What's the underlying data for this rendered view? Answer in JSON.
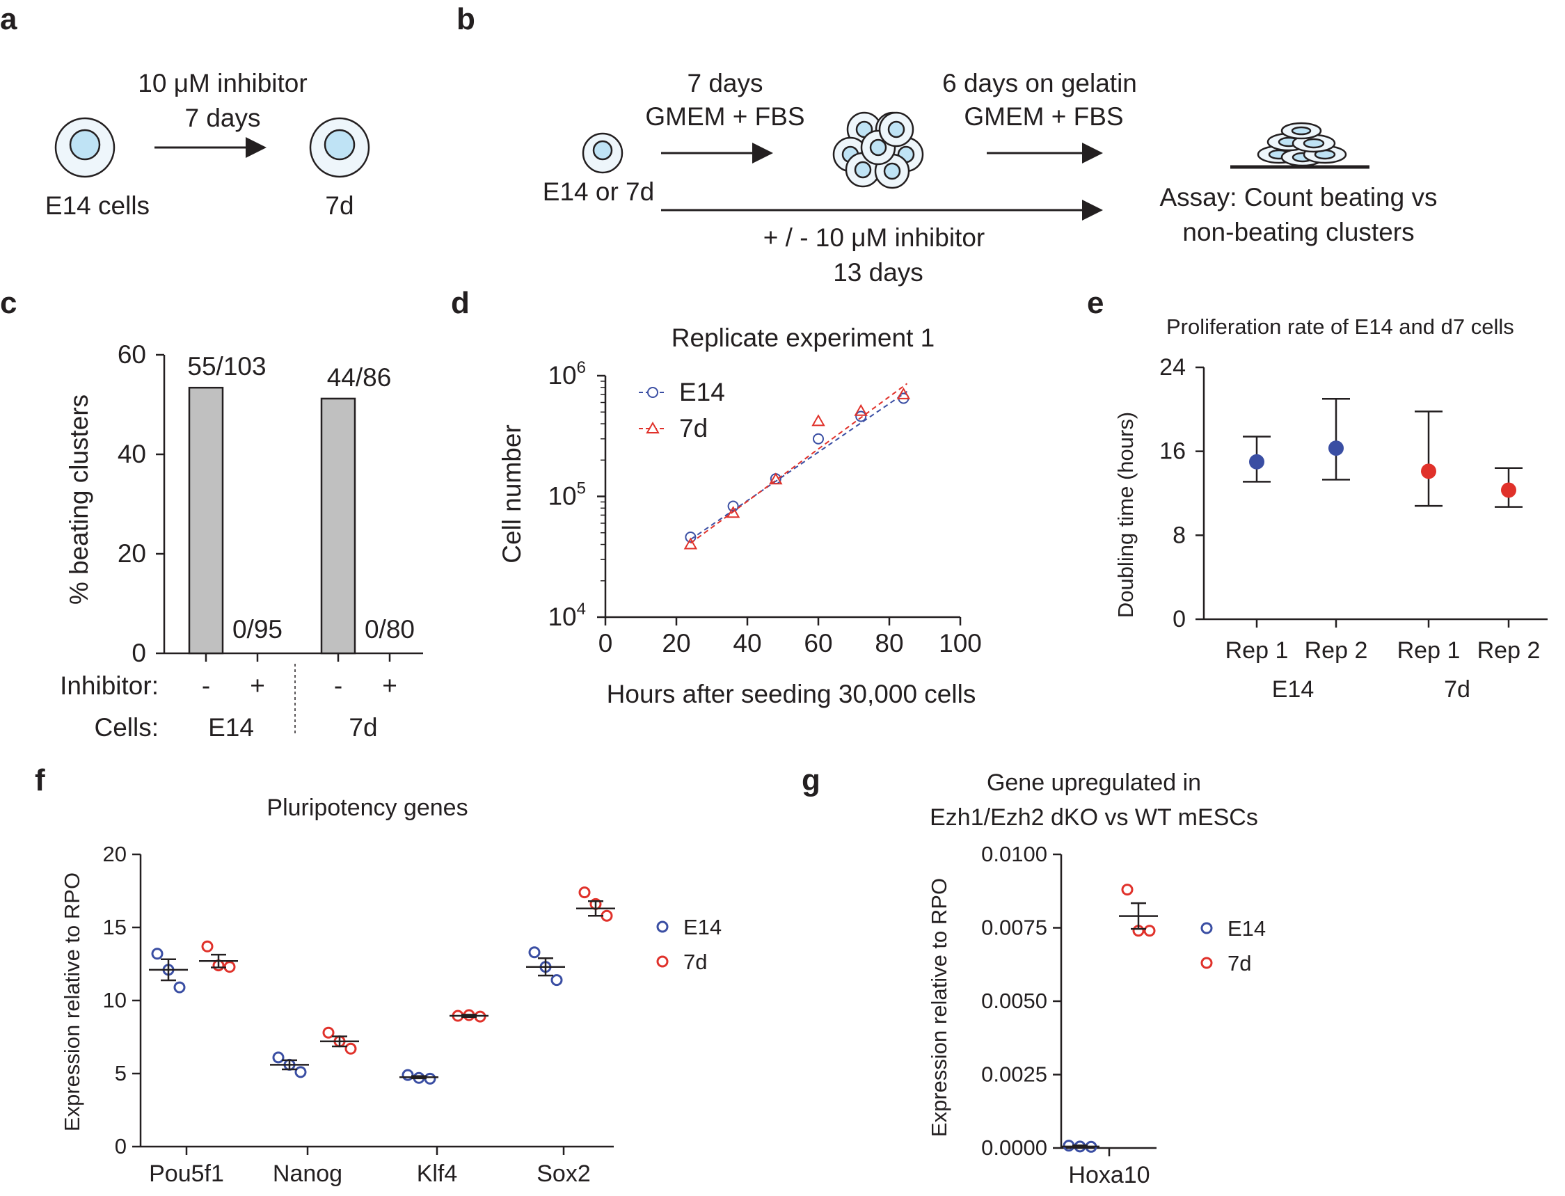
{
  "panels": {
    "a": {
      "label": "a",
      "arrow_line1": "10 μM inhibitor",
      "arrow_line2": "7 days",
      "left_cell": "E14 cells",
      "right_cell": "7d"
    },
    "b": {
      "label": "b",
      "start": "E14 or 7d",
      "step1_line1": "7 days",
      "step1_line2": "GMEM + FBS",
      "step2_line1": "6 days on gelatin",
      "step2_line2": "GMEM + FBS",
      "inhib_line1": "+ / - 10 μM inhibitor",
      "inhib_line2": "13 days",
      "assay_line1": "Assay: Count beating vs",
      "assay_line2": "non-beating clusters"
    },
    "g_title": {
      "line1": "Gene upregulated in",
      "line2": "Ezh1/Ezh2 dKO vs WT mESCs"
    }
  },
  "colors": {
    "e14": "#3a4ea3",
    "d7": "#e0312a",
    "bar": "#c0c0c0",
    "cell_fill": "#eef6fb",
    "nucleus_fill": "#bfe3f5"
  },
  "chart_data": [
    {
      "panel": "c",
      "type": "bar",
      "ylabel": "% beating clusters",
      "ylim": [
        0,
        60
      ],
      "yticks": [
        "0",
        "20",
        "40",
        "60"
      ],
      "bars": [
        {
          "cells": "E14",
          "inhibitor": "-",
          "value": 53.4,
          "label": "55/103"
        },
        {
          "cells": "E14",
          "inhibitor": "+",
          "value": 0,
          "label": "0/95"
        },
        {
          "cells": "7d",
          "inhibitor": "-",
          "value": 51.2,
          "label": "44/86"
        },
        {
          "cells": "7d",
          "inhibitor": "+",
          "value": 0,
          "label": "0/80"
        }
      ],
      "row_labels": {
        "inhibitor": "Inhibitor:",
        "cells": "Cells:"
      },
      "group_labels": [
        "E14",
        "7d"
      ]
    },
    {
      "panel": "d",
      "type": "scatter",
      "title": "Replicate experiment 1",
      "xlabel": "Hours after seeding 30,000 cells",
      "ylabel": "Cell number",
      "xlim": [
        0,
        100
      ],
      "xticks": [
        "0",
        "20",
        "40",
        "60",
        "80",
        "100"
      ],
      "yscale": "log",
      "ylim": [
        10000,
        1000000
      ],
      "yticks": [
        {
          "base": "10",
          "exp": "4"
        },
        {
          "base": "10",
          "exp": "5"
        },
        {
          "base": "10",
          "exp": "6"
        }
      ],
      "series": [
        {
          "name": "E14",
          "marker": "circle",
          "x": [
            24,
            36,
            48,
            60,
            72,
            84
          ],
          "y": [
            46000,
            83000,
            140000,
            300000,
            460000,
            650000
          ],
          "fit": [
            [
              24,
              44000
            ],
            [
              85,
              740000
            ]
          ]
        },
        {
          "name": "7d",
          "marker": "triangle",
          "x": [
            24,
            36,
            48,
            60,
            72,
            84
          ],
          "y": [
            40000,
            73000,
            138000,
            420000,
            510000,
            700000
          ],
          "fit": [
            [
              24,
              41000
            ],
            [
              85,
              860000
            ]
          ]
        }
      ]
    },
    {
      "panel": "e",
      "type": "scatter",
      "title": "Proliferation rate of E14 and d7 cells",
      "ylabel": "Doubling  time (hours)",
      "ylim": [
        0,
        24
      ],
      "yticks": [
        "0",
        "8",
        "16",
        "24"
      ],
      "points": [
        {
          "label": "Rep 1",
          "group": "E14",
          "mean": 15.0,
          "low": 13.1,
          "high": 17.4
        },
        {
          "label": "Rep 2",
          "group": "E14",
          "mean": 16.3,
          "low": 13.3,
          "high": 21.0
        },
        {
          "label": "Rep 1",
          "group": "7d",
          "mean": 14.1,
          "low": 10.8,
          "high": 19.8
        },
        {
          "label": "Rep 2",
          "group": "7d",
          "mean": 12.3,
          "low": 10.7,
          "high": 14.4
        }
      ],
      "group_labels": [
        "E14",
        "7d"
      ]
    },
    {
      "panel": "f",
      "type": "scatter",
      "title": "Pluripotency genes",
      "ylabel": "Expression relative to RPO",
      "ylim": [
        0,
        20
      ],
      "yticks": [
        "0",
        "5",
        "10",
        "15",
        "20"
      ],
      "categories": [
        "Pou5f1",
        "Nanog",
        "Klf4",
        "Sox2"
      ],
      "series": [
        {
          "name": "E14",
          "means": [
            12.1,
            5.6,
            4.75,
            12.3
          ],
          "points": [
            [
              13.2,
              12.1,
              10.9
            ],
            [
              6.1,
              5.6,
              5.1
            ],
            [
              4.9,
              4.7,
              4.65
            ],
            [
              13.3,
              12.3,
              11.4
            ]
          ]
        },
        {
          "name": "7d",
          "means": [
            12.7,
            7.2,
            8.95,
            16.3
          ],
          "points": [
            [
              13.7,
              12.4,
              12.3
            ],
            [
              7.8,
              7.2,
              6.7
            ],
            [
              8.95,
              9.0,
              8.9
            ],
            [
              17.4,
              16.6,
              15.8
            ]
          ]
        }
      ]
    },
    {
      "panel": "g",
      "type": "scatter",
      "ylabel": "Expression relative to RPO",
      "ylim": [
        0,
        0.01
      ],
      "yticks": [
        "0.0000",
        "0.0025",
        "0.0050",
        "0.0075",
        "0.0100"
      ],
      "categories": [
        "Hoxa10"
      ],
      "series": [
        {
          "name": "E14",
          "means": [
            5e-05
          ],
          "points": [
            [
              8e-05,
              5e-05,
              4e-05
            ]
          ]
        },
        {
          "name": "7d",
          "means": [
            0.0079
          ],
          "points": [
            [
              0.0088,
              0.0074,
              0.0074
            ]
          ]
        }
      ]
    }
  ]
}
